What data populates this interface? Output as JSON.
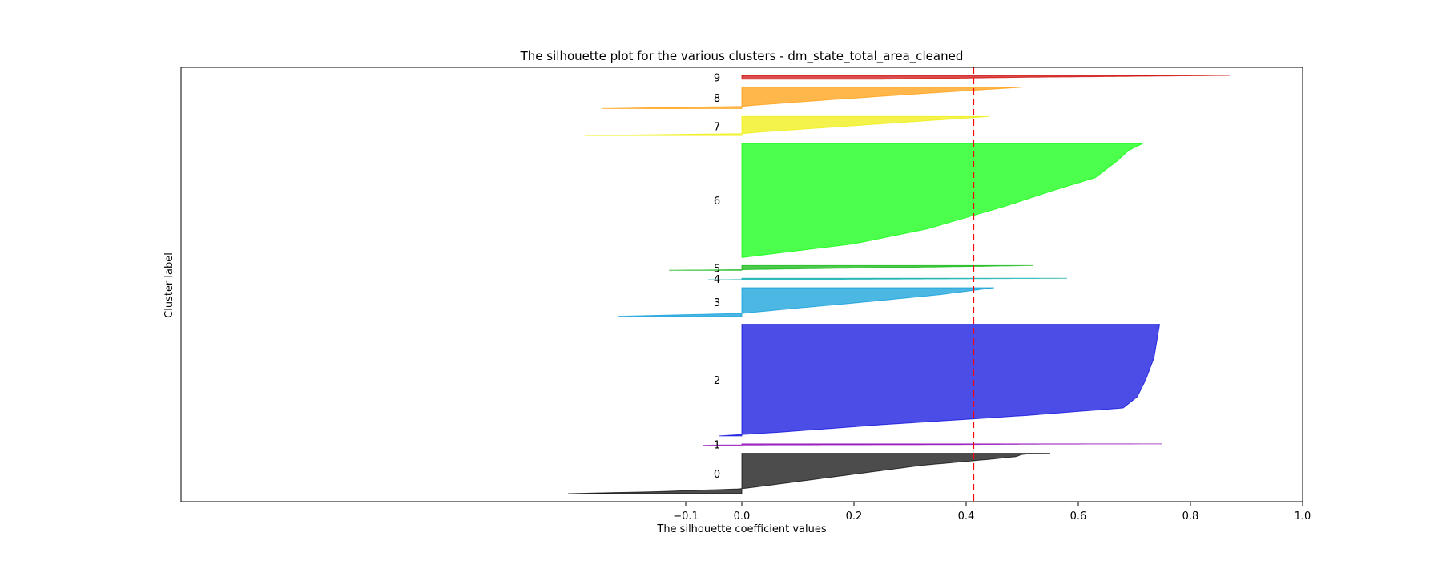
{
  "chart_data": {
    "type": "area",
    "title": "The silhouette plot for the various clusters - dm_state_total_area_cleaned",
    "xlabel": "The silhouette coefficient values",
    "ylabel": "Cluster label",
    "xlim": [
      -1.0,
      1.0
    ],
    "xticks": [
      -0.1,
      0.0,
      0.2,
      0.4,
      0.6,
      0.8,
      1.0
    ],
    "xtick_labels": [
      "−0.1",
      "0.0",
      "0.2",
      "0.4",
      "0.6",
      "0.8",
      "1.0"
    ],
    "average_silhouette": 0.413,
    "average_line_color": "#ff0000",
    "grid": false,
    "clusters": [
      {
        "label": "0",
        "color": "#000000",
        "count": 85,
        "profile": [
          [
            0,
            0.55
          ],
          [
            0.02,
            0.5
          ],
          [
            0.08,
            0.49
          ],
          [
            0.15,
            0.44
          ],
          [
            0.3,
            0.32
          ],
          [
            0.5,
            0.21
          ],
          [
            0.7,
            0.1
          ],
          [
            0.88,
            0.0
          ],
          [
            0.95,
            -0.15
          ],
          [
            1,
            -0.31
          ]
        ]
      },
      {
        "label": "1",
        "color": "#8b00b5",
        "count": 3,
        "profile": [
          [
            0,
            0.75
          ],
          [
            0.2,
            0.52
          ],
          [
            0.5,
            0.38
          ],
          [
            0.8,
            -0.04
          ],
          [
            1,
            -0.07
          ]
        ]
      },
      {
        "label": "2",
        "color": "#0000dd",
        "count": 235,
        "profile": [
          [
            0,
            0.745
          ],
          [
            0.15,
            0.74
          ],
          [
            0.3,
            0.735
          ],
          [
            0.5,
            0.72
          ],
          [
            0.65,
            0.705
          ],
          [
            0.75,
            0.68
          ],
          [
            0.82,
            0.5
          ],
          [
            0.9,
            0.25
          ],
          [
            0.97,
            0.06
          ],
          [
            1,
            -0.04
          ]
        ]
      },
      {
        "label": "3",
        "color": "#0099d6",
        "count": 60,
        "profile": [
          [
            0,
            0.45
          ],
          [
            0.25,
            0.35
          ],
          [
            0.5,
            0.22
          ],
          [
            0.75,
            0.08
          ],
          [
            0.9,
            0.0
          ],
          [
            0.97,
            -0.15
          ],
          [
            1,
            -0.22
          ]
        ]
      },
      {
        "label": "4",
        "color": "#00a8a8",
        "count": 3,
        "profile": [
          [
            0,
            0.58
          ],
          [
            0.5,
            0.3
          ],
          [
            1,
            -0.06
          ]
        ]
      },
      {
        "label": "5",
        "color": "#00b400",
        "count": 10,
        "profile": [
          [
            0,
            0.52
          ],
          [
            0.3,
            0.35
          ],
          [
            0.7,
            0.1
          ],
          [
            0.9,
            -0.02
          ],
          [
            1,
            -0.13
          ]
        ]
      },
      {
        "label": "6",
        "color": "#00ff00",
        "count": 240,
        "profile": [
          [
            0,
            0.715
          ],
          [
            0.06,
            0.69
          ],
          [
            0.15,
            0.67
          ],
          [
            0.3,
            0.63
          ],
          [
            0.42,
            0.55
          ],
          [
            0.55,
            0.47
          ],
          [
            0.65,
            0.4
          ],
          [
            0.75,
            0.33
          ],
          [
            0.88,
            0.2
          ],
          [
            1,
            0.0
          ]
        ]
      },
      {
        "label": "7",
        "color": "#eeee00",
        "count": 40,
        "profile": [
          [
            0,
            0.44
          ],
          [
            0.4,
            0.24
          ],
          [
            0.8,
            0.04
          ],
          [
            0.9,
            0.0
          ],
          [
            1,
            -0.28
          ]
        ]
      },
      {
        "label": "8",
        "color": "#ff9900",
        "count": 45,
        "profile": [
          [
            0,
            0.5
          ],
          [
            0.3,
            0.32
          ],
          [
            0.6,
            0.15
          ],
          [
            0.85,
            0.02
          ],
          [
            0.9,
            0.0
          ],
          [
            1,
            -0.25
          ]
        ]
      },
      {
        "label": "9",
        "color": "#cc0000",
        "count": 8,
        "profile": [
          [
            0,
            0.87
          ],
          [
            0.5,
            0.5
          ],
          [
            1,
            0.25
          ]
        ]
      }
    ]
  }
}
